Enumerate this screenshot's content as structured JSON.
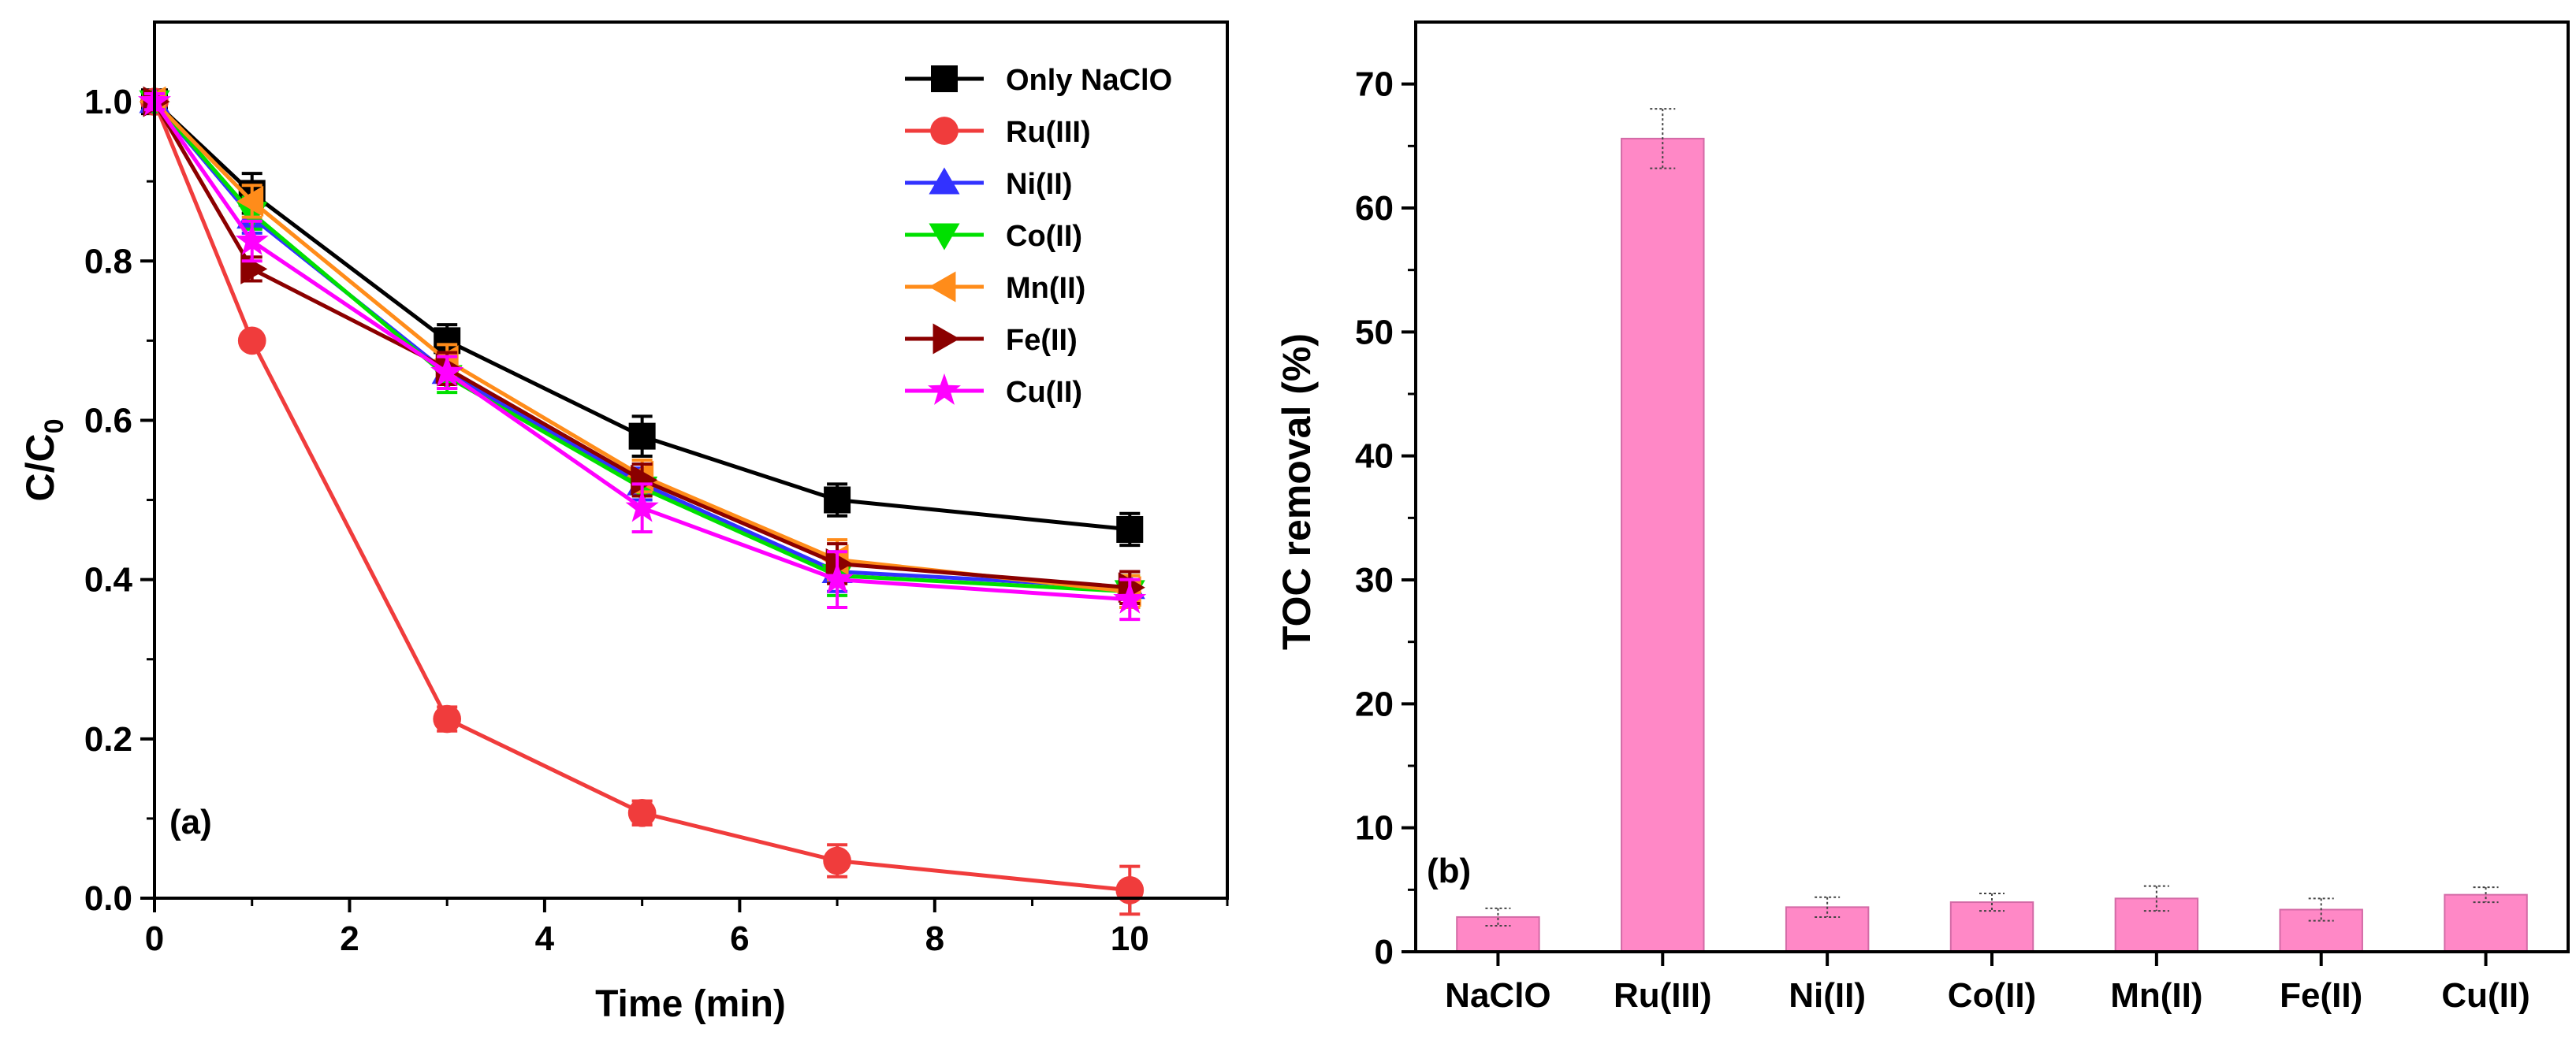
{
  "chart_data": [
    {
      "panel": "(a)",
      "type": "line",
      "xlabel": "Time (min)",
      "ylabel_main": "C/C",
      "ylabel_sub": "0",
      "xlim": [
        0,
        11
      ],
      "ylim": [
        0,
        1.1
      ],
      "xticks": [
        0,
        2,
        4,
        6,
        8,
        10
      ],
      "xtick_labels": [
        "0",
        "2",
        "4",
        "6",
        "8",
        "10"
      ],
      "yticks": [
        0,
        0.2,
        0.4,
        0.6,
        0.8,
        1.0
      ],
      "ytick_labels": [
        "0.0",
        "0.2",
        "0.4",
        "0.6",
        "0.8",
        "1.0"
      ],
      "legend_position": "top-right",
      "x": [
        0,
        1,
        3,
        5,
        7,
        10
      ],
      "series": [
        {
          "name": "Only NaClO",
          "color": "#000000",
          "marker": "square",
          "values": [
            1.0,
            0.885,
            0.7,
            0.58,
            0.5,
            0.463
          ],
          "errors": [
            0.01,
            0.025,
            0.02,
            0.025,
            0.02,
            0.02
          ]
        },
        {
          "name": "Ru(III)",
          "color": "#f03c3c",
          "marker": "circle",
          "values": [
            1.0,
            0.7,
            0.225,
            0.107,
            0.047,
            0.01
          ],
          "errors": [
            0.01,
            0.01,
            0.015,
            0.015,
            0.02,
            0.03
          ]
        },
        {
          "name": "Ni(II)",
          "color": "#3232ff",
          "marker": "triangle-up",
          "values": [
            1.0,
            0.855,
            0.66,
            0.52,
            0.41,
            0.39
          ],
          "errors": [
            0.01,
            0.02,
            0.02,
            0.02,
            0.025,
            0.02
          ]
        },
        {
          "name": "Co(II)",
          "color": "#00e000",
          "marker": "triangle-down",
          "values": [
            1.0,
            0.86,
            0.655,
            0.515,
            0.405,
            0.385
          ],
          "errors": [
            0.01,
            0.02,
            0.02,
            0.02,
            0.025,
            0.02
          ]
        },
        {
          "name": "Mn(II)",
          "color": "#ff8c1a",
          "marker": "triangle-left",
          "values": [
            1.0,
            0.875,
            0.675,
            0.53,
            0.425,
            0.385
          ],
          "errors": [
            0.01,
            0.02,
            0.02,
            0.02,
            0.025,
            0.02
          ]
        },
        {
          "name": "Fe(II)",
          "color": "#8b0000",
          "marker": "triangle-right",
          "values": [
            1.0,
            0.79,
            0.665,
            0.525,
            0.42,
            0.39
          ],
          "errors": [
            0.01,
            0.015,
            0.02,
            0.02,
            0.025,
            0.02
          ]
        },
        {
          "name": "Cu(II)",
          "color": "#ff00ff",
          "marker": "star",
          "values": [
            1.0,
            0.825,
            0.66,
            0.49,
            0.4,
            0.375
          ],
          "errors": [
            0.01,
            0.025,
            0.02,
            0.03,
            0.035,
            0.025
          ]
        }
      ]
    },
    {
      "panel": "(b)",
      "type": "bar",
      "xlabel": "",
      "ylabel": "TOC removal (%)",
      "ylim": [
        0,
        75
      ],
      "yticks": [
        0,
        10,
        20,
        30,
        40,
        50,
        60,
        70
      ],
      "ytick_labels": [
        "0",
        "10",
        "20",
        "30",
        "40",
        "50",
        "60",
        "70"
      ],
      "bar_color": "#ff88c6",
      "categories": [
        "NaClO",
        "Ru(III)",
        "Ni(II)",
        "Co(II)",
        "Mn(II)",
        "Fe(II)",
        "Cu(II)"
      ],
      "values": [
        2.8,
        65.6,
        3.6,
        4.0,
        4.3,
        3.4,
        4.6
      ],
      "errors": [
        0.7,
        2.4,
        0.8,
        0.7,
        1.0,
        0.9,
        0.6
      ]
    }
  ]
}
